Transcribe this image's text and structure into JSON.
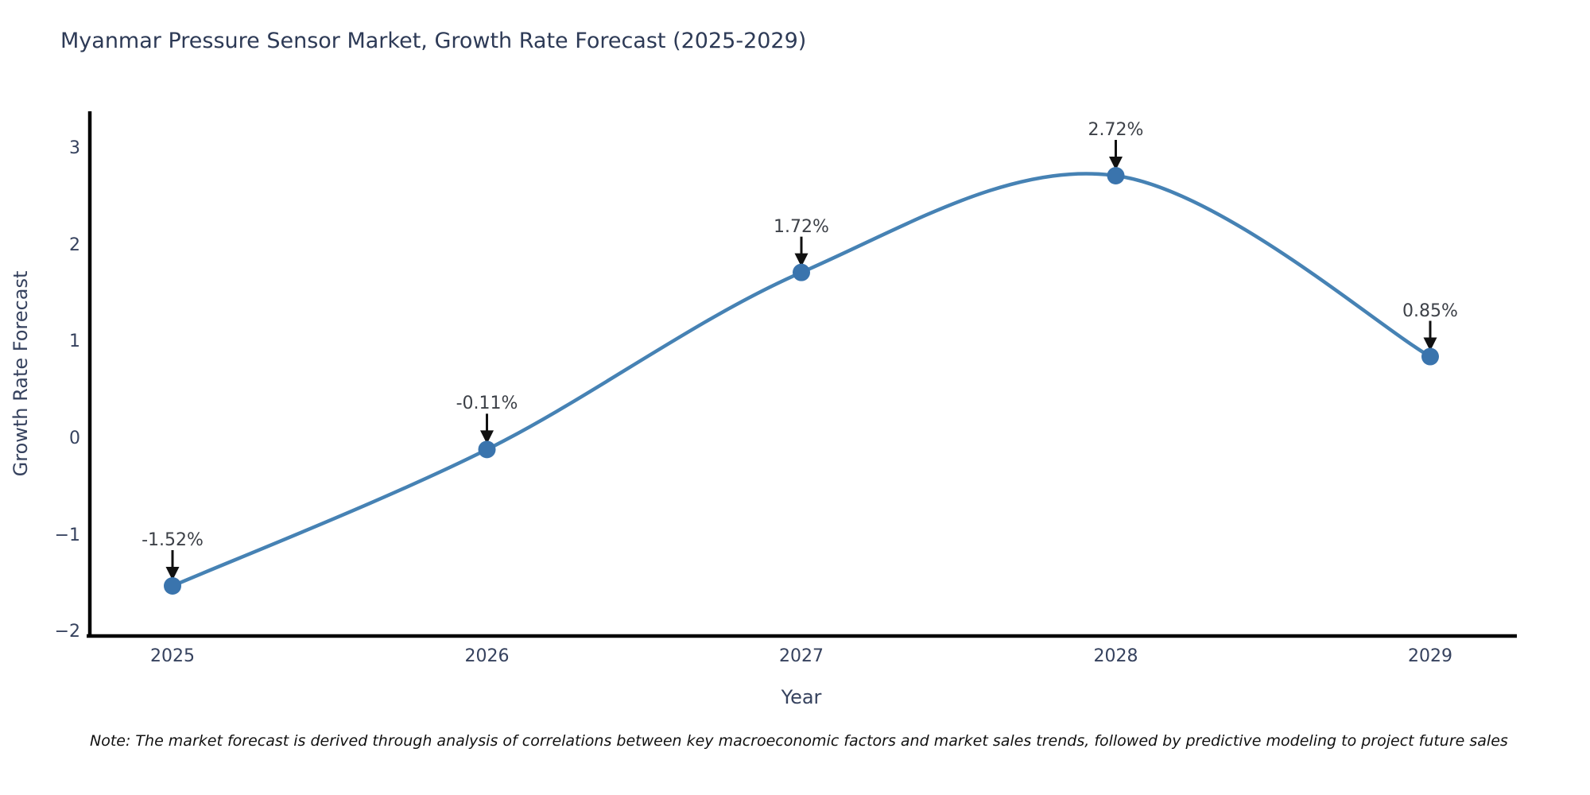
{
  "title": "Myanmar Pressure Sensor Market, Growth Rate Forecast (2025-2029)",
  "note": "Note: The market forecast is derived through analysis of correlations between key macroeconomic factors and market sales trends, followed by predictive modeling to project future sales",
  "chart_data": {
    "type": "line",
    "title": "Myanmar Pressure Sensor Market, Growth Rate Forecast (2025-2029)",
    "xlabel": "Year",
    "ylabel": "Growth Rate Forecast",
    "x": [
      2025,
      2026,
      2027,
      2028,
      2029
    ],
    "categories": [
      "2025",
      "2026",
      "2027",
      "2028",
      "2029"
    ],
    "values": [
      -1.52,
      -0.11,
      1.72,
      2.72,
      0.85
    ],
    "point_labels": [
      "-1.52%",
      "-0.11%",
      "1.72%",
      "2.72%",
      "0.85%"
    ],
    "ylim": [
      -2,
      3
    ],
    "ytick_values": [
      3,
      2,
      1,
      0,
      -1,
      -2
    ],
    "yticks": [
      "3",
      "2",
      "1",
      "0",
      "−1",
      "−2"
    ],
    "grid": false,
    "legend": null,
    "smooth_curve": true,
    "annotation_style": "arrow-down-to-point",
    "colors": {
      "line": "#4682b4",
      "marker": "#3a74ad",
      "axis": "#000000",
      "arrow": "#111111",
      "title_text": "#2d3a56",
      "tick_text": "#36425e",
      "annotation_text": "#3d4148",
      "background": "#ffffff"
    }
  }
}
